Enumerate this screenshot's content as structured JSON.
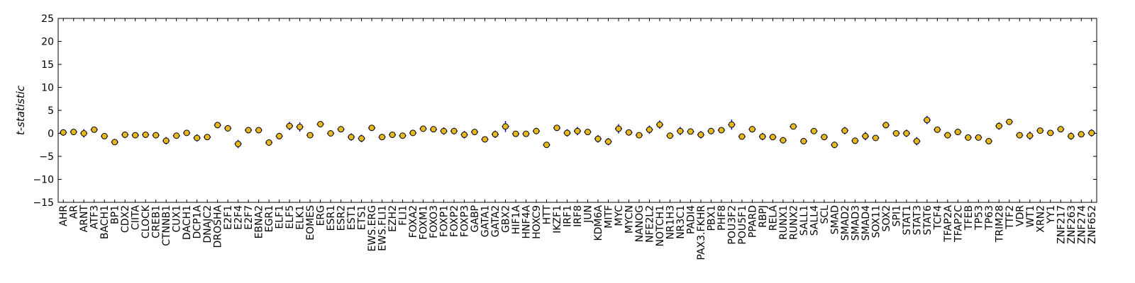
{
  "chart_data": {
    "type": "scatter",
    "title": "",
    "xlabel": "",
    "ylabel": "t-statistic",
    "ylim": [
      -15,
      25
    ],
    "yticks": [
      25,
      20,
      15,
      10,
      5,
      0,
      -5,
      -10,
      -15
    ],
    "grid": false,
    "marker_fill": "#e6b820",
    "marker_edge": "#000000",
    "errorbar_color": "#0000ff",
    "categories": [
      "AHR",
      "AR",
      "ARNT",
      "ATF3",
      "BACH1",
      "BP1",
      "CDX2",
      "CIITA",
      "CLOCK",
      "CREB1",
      "CTNNB1",
      "CUX1",
      "DACH1",
      "DCP1A",
      "DNAJC2",
      "DROSHA",
      "E2F1",
      "E2F4",
      "E2F7",
      "EBNA2",
      "EGR1",
      "ELF1",
      "ELF5",
      "ELK1",
      "EOMES",
      "ERG",
      "ESR1",
      "ESR2",
      "EST1",
      "ETS1",
      "EWS.ERG",
      "EWS.FLI1",
      "EZH2",
      "FLI1",
      "FOXA2",
      "FOXM1",
      "FOXO3",
      "FOXP1",
      "FOXP2",
      "FOXP3",
      "GABP",
      "GATA1",
      "GATA2",
      "GBX2",
      "HIF1A",
      "HNF4A",
      "HOXC9",
      "HTT",
      "IKZF1",
      "IRF1",
      "IRF8",
      "JUN",
      "KDM6A",
      "MITF",
      "MYC",
      "MYCN",
      "NANOG",
      "NFE2L2",
      "NOTCH1",
      "NR1H3",
      "NR3C1",
      "PADI4",
      "PAX3.FKHR",
      "PBX1",
      "PHF8",
      "POU3F2",
      "POU5F1",
      "PPARD",
      "RBPJ",
      "RELA",
      "RUNX1",
      "RUNX2",
      "SALL1",
      "SALL4",
      "SCL",
      "SMAD",
      "SMAD2",
      "SMAD3",
      "SMAD4",
      "SOX11",
      "SOX2",
      "SPI1",
      "STAT1",
      "STAT3",
      "STAT6",
      "TCF4",
      "TFAP2A",
      "TFAP2C",
      "TFEB",
      "TP53",
      "TP63",
      "TRIM28",
      "TTF2",
      "VDR",
      "WT1",
      "XRN2",
      "YY1",
      "ZNF217",
      "ZNF263",
      "ZNF274",
      "ZNF652"
    ],
    "values": [
      0.2,
      0.3,
      0.0,
      0.8,
      -0.6,
      -1.9,
      -0.3,
      -0.4,
      -0.3,
      -0.4,
      -1.6,
      -0.5,
      0.1,
      -1.0,
      -0.8,
      1.8,
      1.1,
      -2.3,
      0.7,
      0.7,
      -2.0,
      -0.6,
      1.6,
      1.4,
      -0.4,
      2.0,
      0.0,
      0.9,
      -0.8,
      -1.1,
      1.2,
      -0.8,
      -0.3,
      -0.5,
      0.1,
      1.0,
      0.9,
      0.5,
      0.5,
      -0.3,
      0.3,
      -1.3,
      -0.2,
      1.5,
      -0.1,
      -0.1,
      0.5,
      -2.5,
      1.2,
      0.1,
      0.5,
      0.3,
      -1.2,
      -1.8,
      1.0,
      0.2,
      -0.4,
      0.8,
      1.9,
      -0.5,
      0.5,
      0.4,
      -0.3,
      0.5,
      0.7,
      1.9,
      -0.7,
      0.9,
      -0.7,
      -0.8,
      -1.5,
      1.5,
      -1.7,
      0.5,
      -0.8,
      -2.5,
      0.6,
      -1.6,
      -0.6,
      -1.0,
      1.8,
      0.0,
      0.0,
      -1.7,
      2.9,
      0.8,
      -0.4,
      0.3,
      -0.9,
      -0.9,
      -1.7,
      1.6,
      2.5,
      -0.4,
      -0.5,
      0.6,
      0.1,
      0.9,
      -0.6,
      -0.2,
      0.1
    ],
    "errors": [
      0.7,
      0.6,
      0.9,
      0.6,
      0.5,
      0.5,
      0.7,
      0.5,
      0.5,
      0.7,
      0.8,
      0.5,
      0.6,
      0.8,
      0.5,
      0.6,
      0.7,
      0.9,
      0.7,
      0.5,
      0.6,
      0.7,
      0.9,
      1.0,
      0.5,
      0.6,
      0.6,
      0.5,
      0.8,
      0.8,
      0.6,
      0.5,
      0.5,
      0.5,
      0.5,
      0.5,
      0.6,
      0.8,
      0.7,
      0.8,
      0.6,
      0.6,
      0.8,
      1.2,
      0.6,
      0.5,
      0.7,
      0.6,
      0.6,
      0.8,
      0.9,
      0.6,
      0.8,
      0.8,
      1.0,
      0.6,
      0.6,
      0.9,
      0.9,
      0.7,
      0.9,
      0.6,
      0.8,
      0.7,
      0.6,
      1.1,
      0.5,
      0.7,
      0.8,
      0.7,
      0.7,
      0.6,
      0.7,
      0.6,
      0.6,
      0.7,
      0.8,
      0.7,
      0.9,
      0.6,
      0.7,
      0.7,
      0.8,
      0.9,
      0.9,
      0.5,
      0.5,
      0.7,
      0.5,
      0.6,
      0.6,
      0.8,
      0.6,
      0.7,
      0.9,
      0.6,
      0.6,
      0.6,
      0.8,
      0.6,
      0.8
    ]
  }
}
